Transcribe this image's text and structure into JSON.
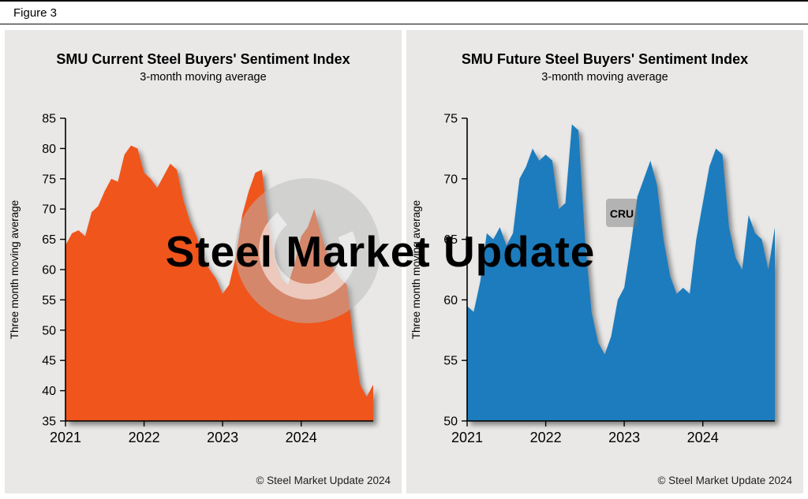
{
  "figure_label": "Figure 3",
  "watermark": {
    "text": "Steel Market Update",
    "badge": "CRU"
  },
  "chart_data": [
    {
      "type": "area",
      "title": "SMU Current Steel Buyers' Sentiment Index",
      "subtitle": "3-month moving average",
      "ylabel": "Three month moving average",
      "footer": "© Steel Market Update 2024",
      "color": "#f0541c",
      "ylim": [
        35,
        85
      ],
      "ytick_step": 5,
      "x_range": [
        "2021",
        "2024"
      ],
      "x_tick_labels": [
        "2021",
        "2022",
        "2023",
        "2024"
      ],
      "x_tick_indices": [
        0,
        12,
        24,
        36
      ],
      "grid": false,
      "legend": false,
      "values": [
        64,
        66,
        66.5,
        65.5,
        69.5,
        70.5,
        73,
        75,
        74.5,
        79,
        80.5,
        80,
        76,
        75,
        73.5,
        75.5,
        77.5,
        76.5,
        71.5,
        68,
        65.5,
        62,
        60,
        58.5,
        56,
        57.5,
        62,
        69,
        73,
        76,
        76.5,
        67.5,
        61.5,
        58.5,
        57.5,
        61,
        65.5,
        67,
        70,
        66,
        62.5,
        60,
        58.5,
        57.5,
        48,
        41,
        39,
        41
      ]
    },
    {
      "type": "area",
      "title": "SMU Future Steel Buyers' Sentiment Index",
      "subtitle": "3-month moving average",
      "ylabel": "Three month moving average",
      "footer": "© Steel Market Update 2024",
      "color": "#1c7bbd",
      "ylim": [
        50,
        75
      ],
      "ytick_step": 5,
      "x_range": [
        "2021",
        "2024"
      ],
      "x_tick_labels": [
        "2021",
        "2022",
        "2023",
        "2024"
      ],
      "x_tick_indices": [
        0,
        12,
        24,
        36
      ],
      "grid": false,
      "legend": false,
      "values": [
        59.5,
        59,
        61.5,
        65.5,
        65,
        66,
        64.5,
        65.5,
        70,
        71,
        72.5,
        71.5,
        72,
        71.5,
        67.5,
        68,
        74.5,
        74,
        65,
        59,
        56.5,
        55.5,
        57,
        60,
        61,
        64.5,
        68.5,
        70,
        71.5,
        69.5,
        65,
        62,
        60.5,
        61,
        60.5,
        65,
        68,
        71,
        72.5,
        72,
        66,
        63.5,
        62.5,
        67,
        65.5,
        65,
        62.5,
        66
      ]
    }
  ]
}
